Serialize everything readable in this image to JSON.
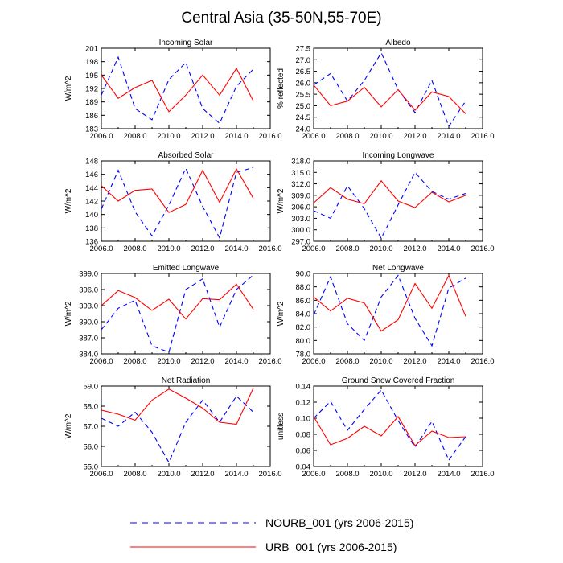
{
  "title": "Central Asia (35-50N,55-70E)",
  "legend": {
    "placement": "bottom-center",
    "entries": [
      {
        "label": "NOURB_001 (yrs 2006-2015)",
        "color": "#0000ff",
        "dash": "dashed"
      },
      {
        "label": "URB_001 (yrs 2006-2015)",
        "color": "#ff0000",
        "dash": "solid"
      }
    ]
  },
  "chart_data": [
    {
      "type": "line",
      "title": "Incoming Solar",
      "ylabel": "W/m^2",
      "xlim": [
        2006,
        2016
      ],
      "xticks": [
        "2006.0",
        "2008.0",
        "2010.0",
        "2012.0",
        "2014.0",
        "2016.0"
      ],
      "ylim": [
        183,
        201
      ],
      "yticks": [
        "183",
        "186",
        "189",
        "192",
        "195",
        "198",
        "201"
      ],
      "x": [
        2006,
        2007,
        2008,
        2009,
        2010,
        2011,
        2012,
        2013,
        2014,
        2015
      ],
      "series": [
        {
          "name": "NOURB_001",
          "values": [
            190.5,
            199.0,
            187.5,
            185.0,
            194.0,
            197.8,
            187.5,
            184.2,
            192.5,
            196.3
          ]
        },
        {
          "name": "URB_001",
          "values": [
            195.0,
            189.8,
            192.2,
            193.8,
            186.8,
            190.5,
            195.0,
            190.5,
            196.5,
            189.2
          ]
        }
      ]
    },
    {
      "type": "line",
      "title": "Albedo",
      "ylabel": "% reflected",
      "xlim": [
        2006,
        2016
      ],
      "xticks": [
        "2006.0",
        "2008.0",
        "2010.0",
        "2012.0",
        "2014.0",
        "2016.0"
      ],
      "ylim": [
        24.0,
        27.5
      ],
      "yticks": [
        "24.0",
        "24.5",
        "25.0",
        "25.5",
        "26.0",
        "26.5",
        "27.0",
        "27.5"
      ],
      "x": [
        2006,
        2007,
        2008,
        2009,
        2010,
        2011,
        2012,
        2013,
        2014,
        2015
      ],
      "series": [
        {
          "name": "NOURB_001",
          "values": [
            25.9,
            26.4,
            25.2,
            26.1,
            27.3,
            25.7,
            24.7,
            26.1,
            24.1,
            25.2
          ]
        },
        {
          "name": "URB_001",
          "values": [
            25.9,
            25.0,
            25.2,
            25.8,
            24.95,
            25.7,
            24.8,
            25.6,
            25.4,
            24.65
          ]
        }
      ]
    },
    {
      "type": "line",
      "title": "Absorbed Solar",
      "ylabel": "W/m^2",
      "xlim": [
        2006,
        2016
      ],
      "xticks": [
        "2006.0",
        "2008.0",
        "2010.0",
        "2012.0",
        "2014.0",
        "2016.0"
      ],
      "ylim": [
        136,
        148
      ],
      "yticks": [
        "136",
        "138",
        "140",
        "142",
        "144",
        "146",
        "148"
      ],
      "x": [
        2006,
        2007,
        2008,
        2009,
        2010,
        2011,
        2012,
        2013,
        2014,
        2015
      ],
      "series": [
        {
          "name": "NOURB_001",
          "values": [
            140.8,
            146.6,
            140.4,
            136.8,
            141.4,
            146.9,
            141.2,
            136.5,
            146.3,
            147.0
          ]
        },
        {
          "name": "URB_001",
          "values": [
            144.3,
            142.0,
            143.6,
            143.8,
            140.3,
            141.5,
            146.6,
            141.8,
            146.8,
            142.4
          ]
        }
      ]
    },
    {
      "type": "line",
      "title": "Incoming Longwave",
      "ylabel": "W/m^2",
      "xlim": [
        2006,
        2016
      ],
      "xticks": [
        "2006.0",
        "2008.0",
        "2010.0",
        "2012.0",
        "2014.0",
        "2016.0"
      ],
      "ylim": [
        297.0,
        318.0
      ],
      "yticks": [
        "297.0",
        "300.0",
        "303.0",
        "306.0",
        "309.0",
        "312.0",
        "315.0",
        "318.0"
      ],
      "x": [
        2006,
        2007,
        2008,
        2009,
        2010,
        2011,
        2012,
        2013,
        2014,
        2015
      ],
      "series": [
        {
          "name": "NOURB_001",
          "values": [
            305.0,
            303.0,
            311.5,
            305.5,
            297.8,
            306.5,
            315.0,
            310.0,
            308.0,
            309.5
          ]
        },
        {
          "name": "URB_001",
          "values": [
            307.0,
            311.0,
            308.0,
            306.8,
            312.8,
            307.5,
            305.8,
            309.8,
            307.3,
            309.0
          ]
        }
      ]
    },
    {
      "type": "line",
      "title": "Emitted Longwave",
      "ylabel": "W/m^2",
      "xlim": [
        2006,
        2016
      ],
      "xticks": [
        "2006.0",
        "2008.0",
        "2010.0",
        "2012.0",
        "2014.0",
        "2016.0"
      ],
      "ylim": [
        384.0,
        399.0
      ],
      "yticks": [
        "384.0",
        "387.0",
        "390.0",
        "393.0",
        "396.0",
        "399.0"
      ],
      "x": [
        2006,
        2007,
        2008,
        2009,
        2010,
        2011,
        2012,
        2013,
        2014,
        2015
      ],
      "series": [
        {
          "name": "NOURB_001",
          "values": [
            388.5,
            392.5,
            394.0,
            385.5,
            384.3,
            396.0,
            398.0,
            389.0,
            396.0,
            398.7
          ]
        },
        {
          "name": "URB_001",
          "values": [
            393.0,
            395.8,
            394.5,
            392.1,
            394.2,
            390.5,
            394.3,
            394.1,
            397.0,
            392.3
          ]
        }
      ]
    },
    {
      "type": "line",
      "title": "Net Longwave",
      "ylabel": "W/m^2",
      "xlim": [
        2006,
        2016
      ],
      "xticks": [
        "2006.0",
        "2008.0",
        "2010.0",
        "2012.0",
        "2014.0",
        "2016.0"
      ],
      "ylim": [
        78.0,
        90.0
      ],
      "yticks": [
        "78.0",
        "80.0",
        "82.0",
        "84.0",
        "86.0",
        "88.0",
        "90.0"
      ],
      "x": [
        2006,
        2007,
        2008,
        2009,
        2010,
        2011,
        2012,
        2013,
        2014,
        2015
      ],
      "series": [
        {
          "name": "NOURB_001",
          "values": [
            83.8,
            89.5,
            82.5,
            80.0,
            86.5,
            89.7,
            83.3,
            79.2,
            87.8,
            89.3
          ]
        },
        {
          "name": "URB_001",
          "values": [
            86.5,
            84.4,
            86.3,
            85.6,
            81.4,
            83.1,
            88.5,
            84.8,
            89.7,
            83.6
          ]
        }
      ]
    },
    {
      "type": "line",
      "title": "Net Radiation",
      "ylabel": "W/m^2",
      "xlim": [
        2006,
        2016
      ],
      "xticks": [
        "2006.0",
        "2008.0",
        "2010.0",
        "2012.0",
        "2014.0",
        "2016.0"
      ],
      "ylim": [
        55.0,
        59.0
      ],
      "yticks": [
        "55.0",
        "56.0",
        "57.0",
        "58.0",
        "59.0"
      ],
      "x": [
        2006,
        2007,
        2008,
        2009,
        2010,
        2011,
        2012,
        2013,
        2014,
        2015
      ],
      "series": [
        {
          "name": "NOURB_001",
          "values": [
            57.4,
            57.0,
            57.7,
            56.7,
            55.2,
            57.2,
            58.3,
            57.2,
            58.5,
            57.7
          ]
        },
        {
          "name": "URB_001",
          "values": [
            57.8,
            57.6,
            57.3,
            58.3,
            58.85,
            58.4,
            57.9,
            57.2,
            57.1,
            58.9
          ]
        }
      ]
    },
    {
      "type": "line",
      "title": "Ground Snow Covered Fraction",
      "ylabel": "unitless",
      "xlim": [
        2006,
        2016
      ],
      "xticks": [
        "2006.0",
        "2008.0",
        "2010.0",
        "2012.0",
        "2014.0",
        "2016.0"
      ],
      "ylim": [
        0.04,
        0.14
      ],
      "yticks": [
        "0.04",
        "0.06",
        "0.08",
        "0.10",
        "0.12",
        "0.14"
      ],
      "x": [
        2006,
        2007,
        2008,
        2009,
        2010,
        2011,
        2012,
        2013,
        2014,
        2015
      ],
      "series": [
        {
          "name": "NOURB_001",
          "values": [
            0.1,
            0.121,
            0.085,
            0.111,
            0.135,
            0.097,
            0.064,
            0.096,
            0.048,
            0.077
          ]
        },
        {
          "name": "URB_001",
          "values": [
            0.102,
            0.067,
            0.075,
            0.09,
            0.078,
            0.102,
            0.066,
            0.084,
            0.076,
            0.077
          ]
        }
      ]
    }
  ]
}
